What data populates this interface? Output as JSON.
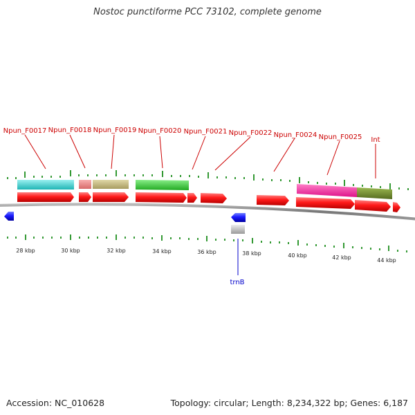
{
  "title": "Nostoc punctiforme PCC 73102, complete genome",
  "footer": {
    "accession": "Accession: NC_010628",
    "summary": "Topology: circular; Length: 8,234,322 bp; Genes: 6,187"
  },
  "colors": {
    "gene_arrow": "#ff0000",
    "rna_arrow": "#0000ff",
    "backbone": "#888888",
    "ticks": "#33aa33",
    "label_forward": "#cc0000",
    "label_reverse": "#0000cc"
  },
  "axis": {
    "unit": "kbp",
    "ticks": [
      "28 kbp",
      "30 kbp",
      "32 kbp",
      "34 kbp",
      "36 kbp",
      "38 kbp",
      "40 kbp",
      "42 kbp",
      "44 kbp"
    ]
  },
  "features": {
    "forward_labels": [
      "Npun_F0017",
      "Npun_F0018",
      "Npun_F0019",
      "Npun_F0020",
      "Npun_F0021",
      "Npun_F0022",
      "Npun_F0024",
      "Npun_F0025",
      "Int"
    ],
    "reverse_labels": [
      "trnB"
    ],
    "domain_colors": [
      "#33cccc",
      "#e88080",
      "#bdb27a",
      "#33cc33",
      "#ff2299",
      "#6b8e23",
      "#bbbbbb"
    ]
  }
}
